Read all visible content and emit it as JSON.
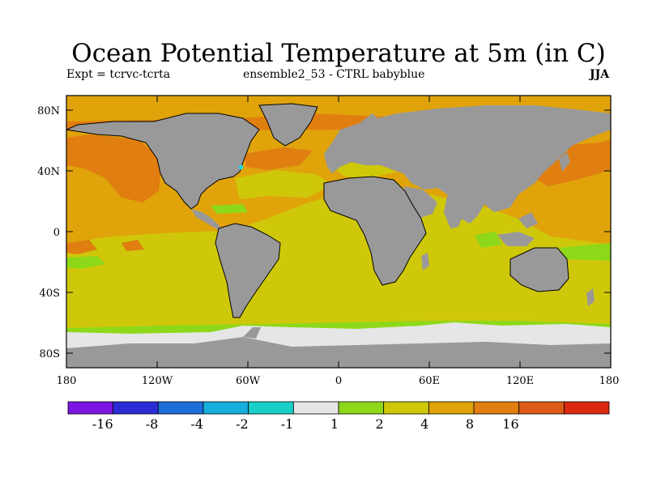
{
  "title": "Ocean Potential Temperature at 5m (in C)",
  "subtitle_left": "Expt = tcrvc-tcrta",
  "subtitle_center": "ensemble2_53 - CTRL babyblue",
  "season": "JJA",
  "lat_ticks": [
    "80N",
    "40N",
    "0",
    "40S",
    "80S"
  ],
  "lon_ticks": [
    "180",
    "120W",
    "60W",
    "0",
    "60E",
    "120E",
    "180"
  ],
  "colorbar": {
    "colors": [
      "#7b16e0",
      "#2c2cd6",
      "#1c6ed8",
      "#17aedc",
      "#18cfc8",
      "#e6e6e6",
      "#8ed81a",
      "#cfc80a",
      "#e0a40a",
      "#e07e10",
      "#de5a18",
      "#dc2a10"
    ],
    "labels": [
      "-16",
      "-8",
      "-4",
      "-2",
      "-1",
      "1",
      "2",
      "4",
      "8",
      "16"
    ]
  },
  "map_colors": {
    "land": "#999999",
    "ice": "#e6e6e6",
    "band_1_2": "#8ed81a",
    "band_2_4": "#cfc80a",
    "band_4_8": "#e0a40a",
    "band_8_16": "#e07e10"
  }
}
